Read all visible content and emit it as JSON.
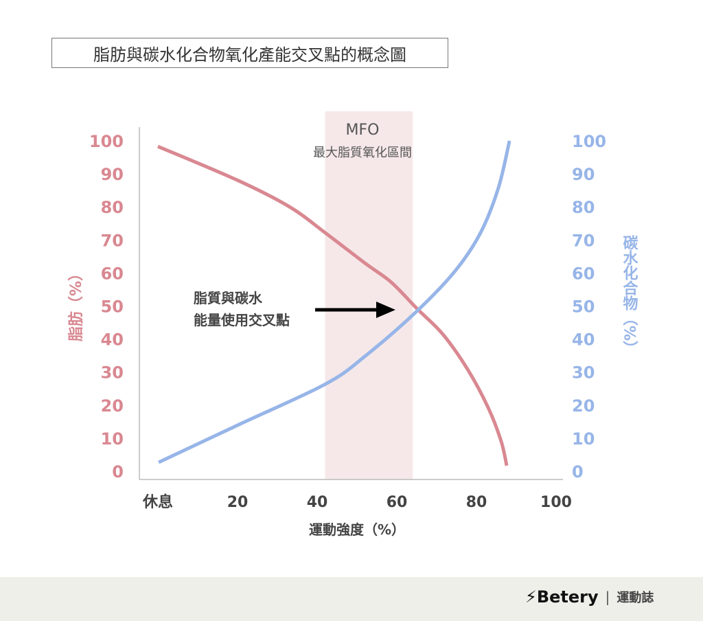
{
  "title": "脂肪與碳水化合物氧化產能交叉點的概念圖",
  "chart_data": {
    "type": "line",
    "xlabel": "運動強度（%）",
    "x_tick_labels": [
      "休息",
      "20",
      "40",
      "60",
      "80",
      "100"
    ],
    "x_ticks": [
      0,
      20,
      40,
      60,
      80,
      100
    ],
    "xlim": [
      0,
      100
    ],
    "ylabel_left": "脂肪（%）",
    "ylabel_right": "碳水化合物（%）",
    "y_ticks": [
      0,
      10,
      20,
      30,
      40,
      50,
      60,
      70,
      80,
      90,
      100
    ],
    "ylim": [
      0,
      100
    ],
    "grid": false,
    "series": [
      {
        "name": "脂肪",
        "axis": "left",
        "color": "#d98891",
        "x": [
          0,
          20.3,
          33.1,
          42.1,
          52.2,
          58.6,
          65.0,
          71.6,
          77.9,
          83.0,
          86.2,
          87.6
        ],
        "y": [
          98.3,
          87.9,
          80.0,
          72.1,
          62.8,
          57.2,
          49.3,
          41.4,
          30.6,
          19.1,
          9.1,
          1.7
        ]
      },
      {
        "name": "碳水化合物",
        "axis": "right",
        "color": "#97b5e8",
        "x": [
          0.2,
          20.3,
          42.1,
          52.2,
          65.0,
          74.7,
          81.0,
          85.5,
          88.3
        ],
        "y": [
          2.7,
          14.1,
          26.4,
          35.0,
          48.4,
          60.7,
          72.1,
          85.7,
          100
        ]
      }
    ],
    "shaded_region": {
      "x": [
        42,
        64
      ],
      "color": "#f6e8e9",
      "label": "MFO",
      "sublabel": "最大脂質氧化區間"
    },
    "annotation": {
      "lines": [
        "脂質與碳水",
        "能量使用交叉點"
      ],
      "arrow_to": [
        65,
        49
      ]
    },
    "left_axis_color": "#d98891",
    "right_axis_color": "#97b5e8"
  },
  "footer": {
    "brand": "Betery",
    "brand_icon": "lightning-bolt-icon",
    "sub": "運動誌",
    "background": "#efefe9"
  }
}
